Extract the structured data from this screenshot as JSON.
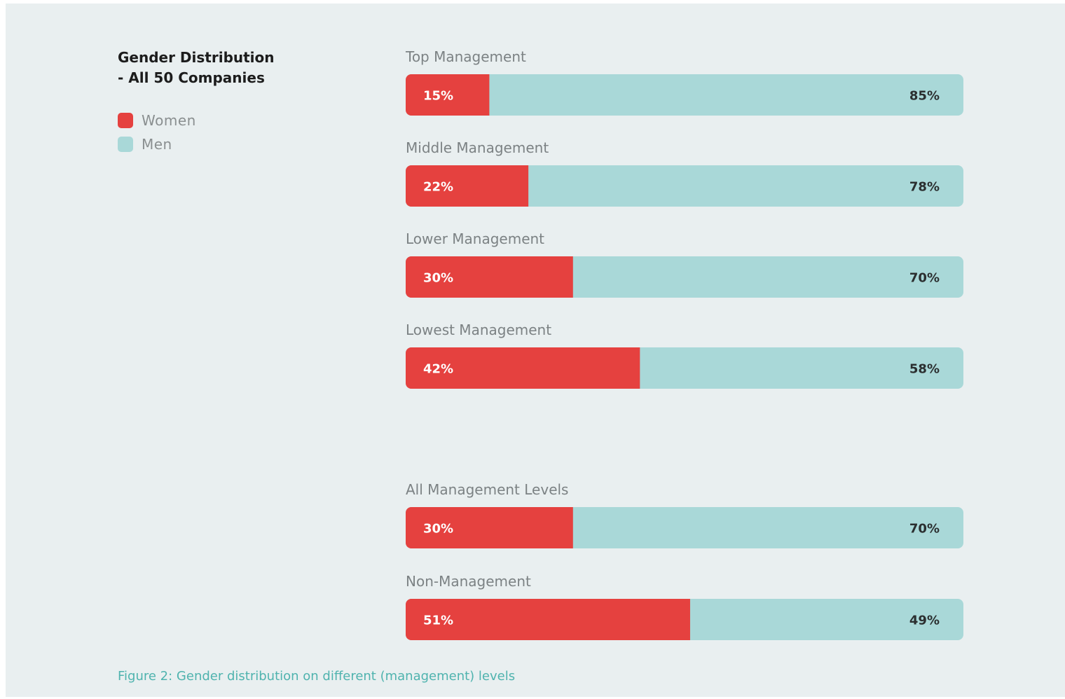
{
  "title": {
    "line1": "Gender Distribution",
    "line2": "- All 50 Companies"
  },
  "legend": [
    {
      "label": "Women",
      "color": "#e5413f"
    },
    {
      "label": "Men",
      "color": "#a9d8d8"
    }
  ],
  "caption": "Figure 2: Gender distribution on different (management) levels",
  "chart_data": {
    "type": "bar",
    "orientation": "horizontal",
    "stacked": true,
    "categories": [
      "Top Management",
      "Middle Management",
      "Lower Management",
      "Lowest Management",
      "All Management Levels",
      "Non-Management"
    ],
    "series": [
      {
        "name": "Women",
        "values": [
          15,
          22,
          30,
          42,
          30,
          51
        ],
        "labels": [
          "15%",
          "22%",
          "30%",
          "42%",
          "30%",
          "51%"
        ],
        "color": "#e5413f"
      },
      {
        "name": "Men",
        "values": [
          85,
          78,
          70,
          58,
          70,
          49
        ],
        "labels": [
          "85%",
          "78%",
          "70%",
          "58%",
          "70%",
          "49%"
        ],
        "color": "#a9d8d8"
      }
    ],
    "xlim": [
      0,
      100
    ],
    "grid": false,
    "legend_position": "top-left"
  }
}
